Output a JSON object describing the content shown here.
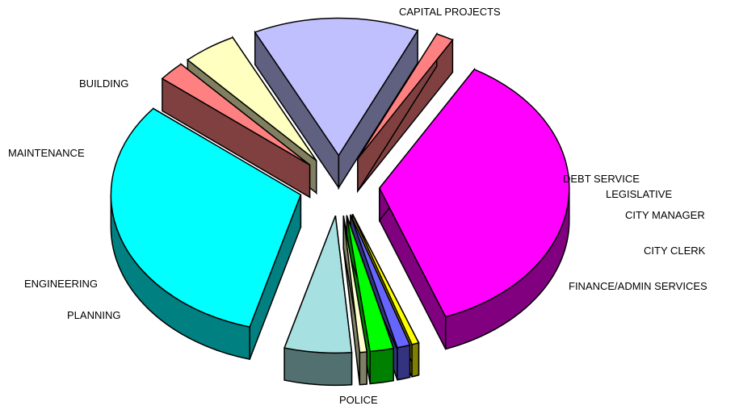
{
  "chart_data": {
    "type": "pie",
    "title": "",
    "exploded": true,
    "style": "3d",
    "slices": [
      {
        "label": "CAPITAL PROJECTS",
        "value": 36.0,
        "color": "#ff00ff"
      },
      {
        "label": "DEBT SERVICE",
        "value": 0.6,
        "color": "#ffff00"
      },
      {
        "label": "LEGISLATIVE",
        "value": 1.1,
        "color": "#6666ff"
      },
      {
        "label": "CITY MANAGER",
        "value": 2.0,
        "color": "#00ff00"
      },
      {
        "label": "CITY CLERK",
        "value": 0.6,
        "color": "#ffffcc"
      },
      {
        "label": "FINANCE/ADMIN SERVICES",
        "value": 5.7,
        "color": "#a6e0e0"
      },
      {
        "label": "POLICE",
        "value": 31.5,
        "color": "#00ffff"
      },
      {
        "label": "PLANNING",
        "value": 2.3,
        "color": "#ff8080"
      },
      {
        "label": "ENGINEERING",
        "value": 4.6,
        "color": "#ffffc0"
      },
      {
        "label": "MAINTENANCE",
        "value": 14.1,
        "color": "#c0c0ff"
      },
      {
        "label": "BUILDING",
        "value": 1.5,
        "color": "#ff8080"
      }
    ]
  }
}
